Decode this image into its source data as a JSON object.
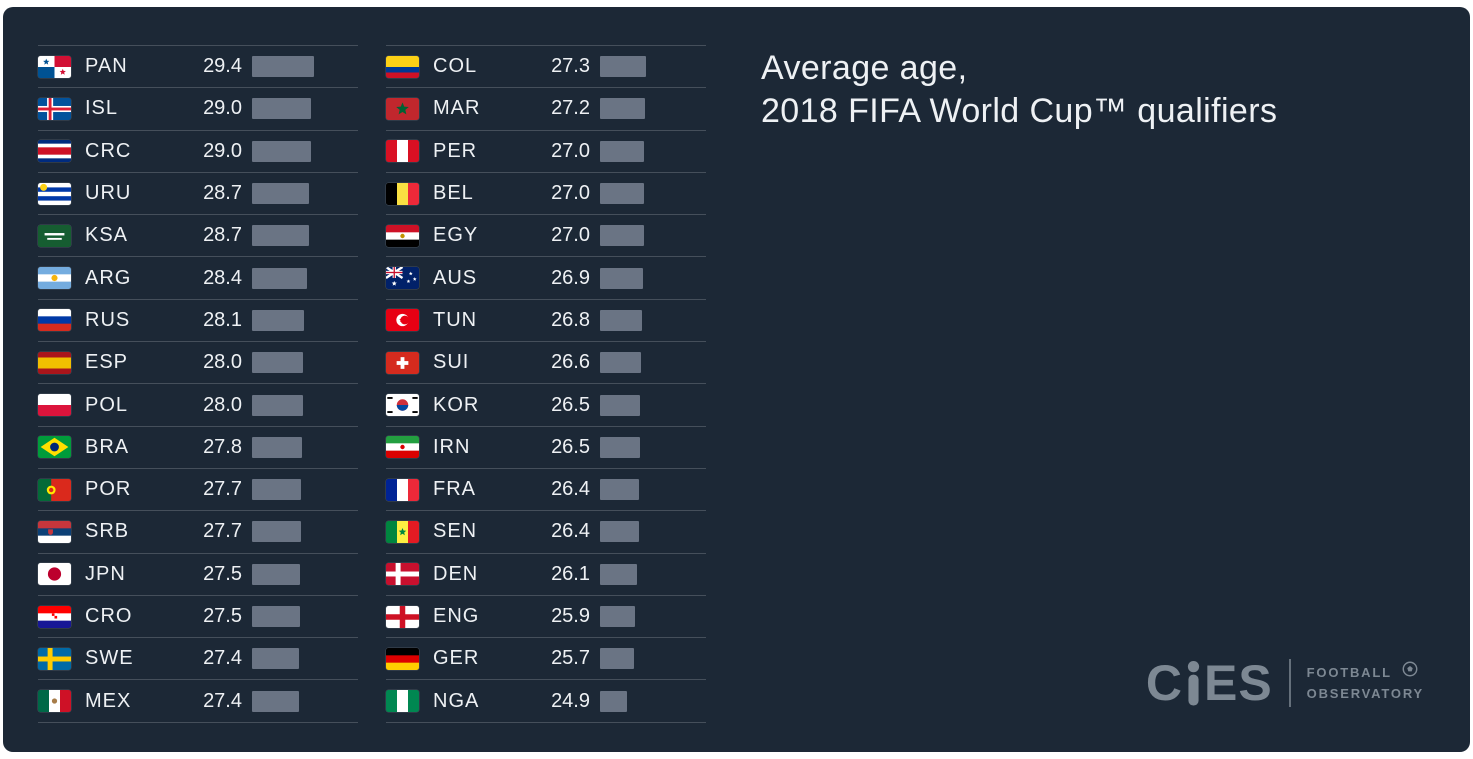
{
  "title": {
    "line1": "Average age,",
    "line2": "2018 FIFA World Cup™ qualifiers"
  },
  "colors": {
    "page": "#ffffff",
    "background": "#1c2836",
    "separator": "#454f5b",
    "text": "#eef1f4",
    "bar": "#6a7484",
    "logo_gray": "#7d8893"
  },
  "logo": {
    "wordmark_left": "C",
    "wordmark_right": "ES",
    "line1": "FOOTBALL",
    "line2": "OBSERVATORY"
  },
  "columns": [
    {
      "rows": [
        {
          "code": "PAN",
          "value": "29.4",
          "flag": {
            "t": "q",
            "c": [
              "#ffffff",
              "#d21034",
              "#005293",
              "#ffffff"
            ],
            "e": [
              {
                "s": "star",
                "c": "#005293",
                "x": 0.25,
                "y": 0.27,
                "r": 0.15
              },
              {
                "s": "star",
                "c": "#d21034",
                "x": 0.75,
                "y": 0.73,
                "r": 0.15
              }
            ]
          }
        },
        {
          "code": "ISL",
          "value": "29.0",
          "flag": {
            "t": "nordic",
            "bg": "#02529c",
            "cross": "#ffffff",
            "inner": "#dc1e35"
          }
        },
        {
          "code": "CRC",
          "value": "29.0",
          "flag": {
            "t": "h",
            "c": [
              "#002b7f",
              "#ffffff",
              "#ce1126",
              "#ffffff",
              "#002b7f"
            ],
            "w": [
              1,
              1,
              2,
              1,
              1
            ]
          }
        },
        {
          "code": "URU",
          "value": "28.7",
          "flag": {
            "t": "h",
            "c": [
              "#ffffff",
              "#0038a8",
              "#ffffff",
              "#0038a8",
              "#ffffff"
            ],
            "e": [
              {
                "s": "disc",
                "c": "#fcd116",
                "x": 0.17,
                "y": 0.2,
                "r": 0.16
              }
            ]
          }
        },
        {
          "code": "KSA",
          "value": "28.7",
          "flag": {
            "t": "solid",
            "c": [
              "#165d31"
            ],
            "e": [
              {
                "s": "hbar",
                "c": "#ffffff",
                "x": 0.5,
                "y": 0.42,
                "r": 0.3
              },
              {
                "s": "hbar",
                "c": "#ffffff",
                "x": 0.5,
                "y": 0.63,
                "r": 0.22
              }
            ]
          }
        },
        {
          "code": "ARG",
          "value": "28.4",
          "flag": {
            "t": "h",
            "c": [
              "#74acdf",
              "#ffffff",
              "#74acdf"
            ],
            "e": [
              {
                "s": "disc",
                "c": "#f6b40e",
                "x": 0.5,
                "y": 0.5,
                "r": 0.14
              }
            ]
          }
        },
        {
          "code": "RUS",
          "value": "28.1",
          "flag": {
            "t": "h",
            "c": [
              "#ffffff",
              "#0039a6",
              "#d52b1e"
            ]
          }
        },
        {
          "code": "ESP",
          "value": "28.0",
          "flag": {
            "t": "h",
            "c": [
              "#aa151b",
              "#f1bf00",
              "#aa151b"
            ],
            "w": [
              1,
              2,
              1
            ]
          }
        },
        {
          "code": "POL",
          "value": "28.0",
          "flag": {
            "t": "h",
            "c": [
              "#ffffff",
              "#dc143c"
            ]
          }
        },
        {
          "code": "BRA",
          "value": "27.8",
          "flag": {
            "t": "solid",
            "c": [
              "#009c3b"
            ],
            "e": [
              {
                "s": "diamond",
                "c": "#ffdf00",
                "x": 0.5,
                "y": 0.5,
                "r": 0.42
              },
              {
                "s": "disc",
                "c": "#002776",
                "x": 0.5,
                "y": 0.5,
                "r": 0.2
              }
            ]
          }
        },
        {
          "code": "POR",
          "value": "27.7",
          "flag": {
            "t": "v",
            "c": [
              "#046a38",
              "#da291c"
            ],
            "w": [
              2,
              3
            ],
            "e": [
              {
                "s": "disc",
                "c": "#ffe900",
                "x": 0.4,
                "y": 0.5,
                "r": 0.2
              },
              {
                "s": "disc",
                "c": "#da291c",
                "x": 0.4,
                "y": 0.5,
                "r": 0.1
              }
            ]
          }
        },
        {
          "code": "SRB",
          "value": "27.7",
          "flag": {
            "t": "h",
            "c": [
              "#c6363c",
              "#0c4076",
              "#ffffff"
            ],
            "e": [
              {
                "s": "shield",
                "c": "#c6363c",
                "x": 0.38,
                "y": 0.52,
                "r": 0.2
              }
            ]
          }
        },
        {
          "code": "JPN",
          "value": "27.5",
          "flag": {
            "t": "solid",
            "c": [
              "#ffffff"
            ],
            "e": [
              {
                "s": "disc",
                "c": "#bc002d",
                "x": 0.5,
                "y": 0.5,
                "r": 0.3
              }
            ]
          }
        },
        {
          "code": "CRO",
          "value": "27.5",
          "flag": {
            "t": "h",
            "c": [
              "#ff0000",
              "#ffffff",
              "#171796"
            ],
            "e": [
              {
                "s": "checker",
                "c": "#ff0000",
                "x": 0.5,
                "y": 0.45,
                "r": 0.22
              }
            ]
          }
        },
        {
          "code": "SWE",
          "value": "27.4",
          "flag": {
            "t": "nordic",
            "bg": "#006aa7",
            "cross": "#fecc00"
          }
        },
        {
          "code": "MEX",
          "value": "27.4",
          "flag": {
            "t": "v",
            "c": [
              "#006847",
              "#ffffff",
              "#ce1126"
            ],
            "e": [
              {
                "s": "disc",
                "c": "#a77d4a",
                "x": 0.5,
                "y": 0.5,
                "r": 0.12
              }
            ]
          }
        }
      ]
    },
    {
      "rows": [
        {
          "code": "COL",
          "value": "27.3",
          "flag": {
            "t": "h",
            "c": [
              "#fcd116",
              "#003893",
              "#ce1126"
            ],
            "w": [
              2,
              1,
              1
            ]
          }
        },
        {
          "code": "MAR",
          "value": "27.2",
          "flag": {
            "t": "solid",
            "c": [
              "#c1272d"
            ],
            "e": [
              {
                "s": "star",
                "c": "#006233",
                "x": 0.5,
                "y": 0.5,
                "r": 0.3
              }
            ]
          }
        },
        {
          "code": "PER",
          "value": "27.0",
          "flag": {
            "t": "v",
            "c": [
              "#d91023",
              "#ffffff",
              "#d91023"
            ]
          }
        },
        {
          "code": "BEL",
          "value": "27.0",
          "flag": {
            "t": "v",
            "c": [
              "#000000",
              "#fae042",
              "#ed2939"
            ]
          }
        },
        {
          "code": "EGY",
          "value": "27.0",
          "flag": {
            "t": "h",
            "c": [
              "#ce1126",
              "#ffffff",
              "#000000"
            ],
            "e": [
              {
                "s": "disc",
                "c": "#c09300",
                "x": 0.5,
                "y": 0.5,
                "r": 0.1
              }
            ]
          }
        },
        {
          "code": "AUS",
          "value": "26.9",
          "flag": {
            "t": "solid",
            "c": [
              "#012169"
            ],
            "e": [
              {
                "s": "union",
                "c": "#ffffff",
                "x": 0.25,
                "y": 0.25,
                "r": 0.5
              },
              {
                "s": "star",
                "c": "#ffffff",
                "x": 0.75,
                "y": 0.3,
                "r": 0.09
              },
              {
                "s": "star",
                "c": "#ffffff",
                "x": 0.68,
                "y": 0.65,
                "r": 0.09
              },
              {
                "s": "star",
                "c": "#ffffff",
                "x": 0.87,
                "y": 0.55,
                "r": 0.09
              },
              {
                "s": "star",
                "c": "#ffffff",
                "x": 0.25,
                "y": 0.75,
                "r": 0.12
              }
            ]
          }
        },
        {
          "code": "TUN",
          "value": "26.8",
          "flag": {
            "t": "solid",
            "c": [
              "#e70013"
            ],
            "e": [
              {
                "s": "disc",
                "c": "#ffffff",
                "x": 0.5,
                "y": 0.5,
                "r": 0.28
              },
              {
                "s": "disc",
                "c": "#e70013",
                "x": 0.57,
                "y": 0.5,
                "r": 0.2
              },
              {
                "s": "star",
                "c": "#e70013",
                "x": 0.47,
                "y": 0.5,
                "r": 0.11
              }
            ]
          }
        },
        {
          "code": "SUI",
          "value": "26.6",
          "flag": {
            "t": "solid",
            "c": [
              "#d52b1e"
            ],
            "e": [
              {
                "s": "plus",
                "c": "#ffffff",
                "x": 0.5,
                "y": 0.5,
                "r": 0.28
              }
            ]
          }
        },
        {
          "code": "KOR",
          "value": "26.5",
          "flag": {
            "t": "solid",
            "c": [
              "#ffffff"
            ],
            "e": [
              {
                "s": "disc",
                "c": "#cd2e3a",
                "x": 0.5,
                "y": 0.5,
                "r": 0.26
              },
              {
                "s": "halfdisc",
                "c": "#0047a0",
                "x": 0.5,
                "y": 0.5,
                "r": 0.26
              },
              {
                "s": "hbar",
                "c": "#000000",
                "x": 0.12,
                "y": 0.18,
                "r": 0.08
              },
              {
                "s": "hbar",
                "c": "#000000",
                "x": 0.88,
                "y": 0.18,
                "r": 0.08
              },
              {
                "s": "hbar",
                "c": "#000000",
                "x": 0.12,
                "y": 0.82,
                "r": 0.08
              },
              {
                "s": "hbar",
                "c": "#000000",
                "x": 0.88,
                "y": 0.82,
                "r": 0.08
              }
            ]
          }
        },
        {
          "code": "IRN",
          "value": "26.5",
          "flag": {
            "t": "h",
            "c": [
              "#239f40",
              "#ffffff",
              "#da0000"
            ],
            "e": [
              {
                "s": "disc",
                "c": "#da0000",
                "x": 0.5,
                "y": 0.5,
                "r": 0.1
              }
            ]
          }
        },
        {
          "code": "FRA",
          "value": "26.4",
          "flag": {
            "t": "v",
            "c": [
              "#002395",
              "#ffffff",
              "#ed2939"
            ]
          }
        },
        {
          "code": "SEN",
          "value": "26.4",
          "flag": {
            "t": "v",
            "c": [
              "#00853f",
              "#fdef42",
              "#e31b23"
            ],
            "e": [
              {
                "s": "star",
                "c": "#00853f",
                "x": 0.5,
                "y": 0.5,
                "r": 0.18
              }
            ]
          }
        },
        {
          "code": "DEN",
          "value": "26.1",
          "flag": {
            "t": "nordic",
            "bg": "#c8102e",
            "cross": "#ffffff"
          }
        },
        {
          "code": "ENG",
          "value": "25.9",
          "flag": {
            "t": "cross",
            "bg": "#ffffff",
            "cross": "#ce1124"
          }
        },
        {
          "code": "GER",
          "value": "25.7",
          "flag": {
            "t": "h",
            "c": [
              "#000000",
              "#dd0000",
              "#ffce00"
            ]
          }
        },
        {
          "code": "NGA",
          "value": "24.9",
          "flag": {
            "t": "v",
            "c": [
              "#008751",
              "#ffffff",
              "#008751"
            ]
          }
        }
      ]
    }
  ],
  "chart_data": {
    "type": "bar",
    "orientation": "horizontal",
    "title": "Average age, 2018 FIFA World Cup™ qualifiers",
    "xlabel": "",
    "ylabel": "",
    "legend": false,
    "grid": false,
    "categories": [
      "PAN",
      "ISL",
      "CRC",
      "URU",
      "KSA",
      "ARG",
      "RUS",
      "ESP",
      "POL",
      "BRA",
      "POR",
      "SRB",
      "JPN",
      "CRO",
      "SWE",
      "MEX",
      "COL",
      "MAR",
      "PER",
      "BEL",
      "EGY",
      "AUS",
      "TUN",
      "SUI",
      "KOR",
      "IRN",
      "FRA",
      "SEN",
      "DEN",
      "ENG",
      "GER",
      "NGA"
    ],
    "values": [
      29.4,
      29.0,
      29.0,
      28.7,
      28.7,
      28.4,
      28.1,
      28.0,
      28.0,
      27.8,
      27.7,
      27.7,
      27.5,
      27.5,
      27.4,
      27.4,
      27.3,
      27.2,
      27.0,
      27.0,
      27.0,
      26.9,
      26.8,
      26.6,
      26.5,
      26.5,
      26.4,
      26.4,
      26.1,
      25.9,
      25.7,
      24.9
    ]
  }
}
